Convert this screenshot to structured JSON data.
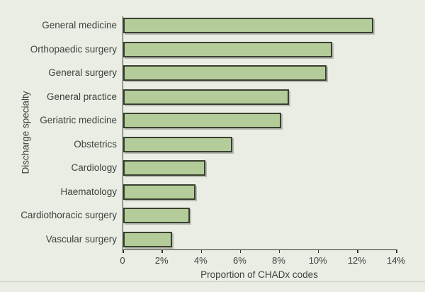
{
  "figure": {
    "background_color": "#e9ede3",
    "bar_fill_color": "#b4cc99",
    "bar_border_color": "#3a4031",
    "axis_color": "#2f2f2f",
    "text_color": "#414141",
    "bottom_rule_color": "#c9cec0"
  },
  "chart_data": {
    "type": "bar",
    "orientation": "horizontal",
    "title": "",
    "xlabel": "Proportion of CHADx codes",
    "ylabel": "Discharge specialty",
    "categories": [
      "General medicine",
      "Orthopaedic surgery",
      "General surgery",
      "General practice",
      "Geriatric medicine",
      "Obstetrics",
      "Cardiology",
      "Haematology",
      "Cardiothoracic surgery",
      "Vascular surgery"
    ],
    "values": [
      12.8,
      10.7,
      10.4,
      8.5,
      8.1,
      5.6,
      4.2,
      3.7,
      3.4,
      2.5
    ],
    "value_unit": "%",
    "xlim": [
      0,
      14
    ],
    "x_ticks": [
      0,
      2,
      4,
      6,
      8,
      10,
      12,
      14
    ],
    "x_tick_labels": [
      "0",
      "2%",
      "4%",
      "6%",
      "8%",
      "10%",
      "12%",
      "14%"
    ],
    "grid": false,
    "legend": false
  }
}
